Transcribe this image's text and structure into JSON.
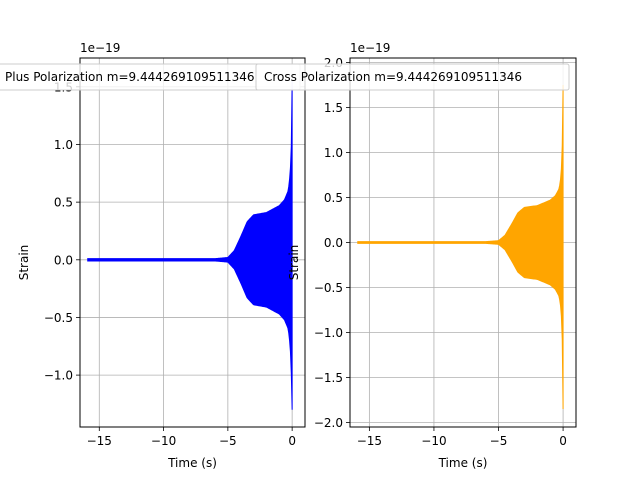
{
  "chart_data": [
    {
      "type": "line",
      "title": "Plus Polarization m=9.444269109511346",
      "xlabel": "Time (s)",
      "ylabel": "Strain",
      "offset_text": "1e−19",
      "xlim": [
        -16.5,
        1.0
      ],
      "ylim": [
        -1.45,
        1.75
      ],
      "xticks": [
        -15,
        -10,
        -5,
        0
      ],
      "xtick_labels": [
        "−15",
        "−10",
        "−5",
        "0"
      ],
      "yticks": [
        -1.0,
        -0.5,
        0.0,
        0.5,
        1.0,
        1.5
      ],
      "ytick_labels": [
        "−1.0",
        "−0.5",
        "0.0",
        "0.5",
        "1.0",
        "1.5"
      ],
      "grid": true,
      "color": "#0000ff",
      "series": [
        {
          "envelope_upper": [
            [
              -15.9,
              0.01
            ],
            [
              -6.0,
              0.01
            ],
            [
              -5.0,
              0.02
            ],
            [
              -4.5,
              0.08
            ],
            [
              -4.0,
              0.2
            ],
            [
              -3.5,
              0.33
            ],
            [
              -3.0,
              0.39
            ],
            [
              -2.5,
              0.4
            ],
            [
              -2.0,
              0.41
            ],
            [
              -1.5,
              0.44
            ],
            [
              -1.0,
              0.47
            ],
            [
              -0.6,
              0.52
            ],
            [
              -0.3,
              0.6
            ],
            [
              -0.15,
              0.75
            ],
            [
              -0.06,
              1.0
            ],
            [
              0.0,
              1.55
            ]
          ],
          "envelope_lower": [
            [
              -15.9,
              -0.01
            ],
            [
              -6.0,
              -0.01
            ],
            [
              -5.0,
              -0.02
            ],
            [
              -4.5,
              -0.08
            ],
            [
              -4.0,
              -0.2
            ],
            [
              -3.5,
              -0.33
            ],
            [
              -3.0,
              -0.39
            ],
            [
              -2.5,
              -0.4
            ],
            [
              -2.0,
              -0.41
            ],
            [
              -1.5,
              -0.44
            ],
            [
              -1.0,
              -0.47
            ],
            [
              -0.6,
              -0.52
            ],
            [
              -0.3,
              -0.6
            ],
            [
              -0.15,
              -0.75
            ],
            [
              -0.06,
              -1.0
            ],
            [
              0.0,
              -1.3
            ]
          ]
        }
      ]
    },
    {
      "type": "line",
      "title": "Cross Polarization m=9.444269109511346",
      "xlabel": "Time (s)",
      "ylabel": "Strain",
      "offset_text": "1e−19",
      "xlim": [
        -16.5,
        1.0
      ],
      "ylim": [
        -2.05,
        2.05
      ],
      "xticks": [
        -15,
        -10,
        -5,
        0
      ],
      "xtick_labels": [
        "−15",
        "−10",
        "−5",
        "0"
      ],
      "yticks": [
        -2.0,
        -1.5,
        -1.0,
        -0.5,
        0.0,
        0.5,
        1.0,
        1.5,
        2.0
      ],
      "ytick_labels": [
        "−2.0",
        "−1.5",
        "−1.0",
        "−0.5",
        "0.0",
        "0.5",
        "1.0",
        "1.5",
        "2.0"
      ],
      "grid": true,
      "color": "#ffa500",
      "series": [
        {
          "envelope_upper": [
            [
              -15.9,
              0.01
            ],
            [
              -6.0,
              0.01
            ],
            [
              -5.0,
              0.02
            ],
            [
              -4.5,
              0.08
            ],
            [
              -4.0,
              0.2
            ],
            [
              -3.5,
              0.33
            ],
            [
              -3.0,
              0.39
            ],
            [
              -2.5,
              0.4
            ],
            [
              -2.0,
              0.41
            ],
            [
              -1.5,
              0.44
            ],
            [
              -1.0,
              0.47
            ],
            [
              -0.6,
              0.52
            ],
            [
              -0.3,
              0.6
            ],
            [
              -0.15,
              0.75
            ],
            [
              -0.06,
              1.1
            ],
            [
              0.0,
              1.75
            ]
          ],
          "envelope_lower": [
            [
              -15.9,
              -0.01
            ],
            [
              -6.0,
              -0.01
            ],
            [
              -5.0,
              -0.02
            ],
            [
              -4.5,
              -0.08
            ],
            [
              -4.0,
              -0.2
            ],
            [
              -3.5,
              -0.33
            ],
            [
              -3.0,
              -0.39
            ],
            [
              -2.5,
              -0.4
            ],
            [
              -2.0,
              -0.41
            ],
            [
              -1.5,
              -0.44
            ],
            [
              -1.0,
              -0.47
            ],
            [
              -0.6,
              -0.52
            ],
            [
              -0.3,
              -0.6
            ],
            [
              -0.15,
              -0.75
            ],
            [
              -0.06,
              -1.1
            ],
            [
              0.0,
              -1.85
            ]
          ]
        }
      ]
    }
  ]
}
